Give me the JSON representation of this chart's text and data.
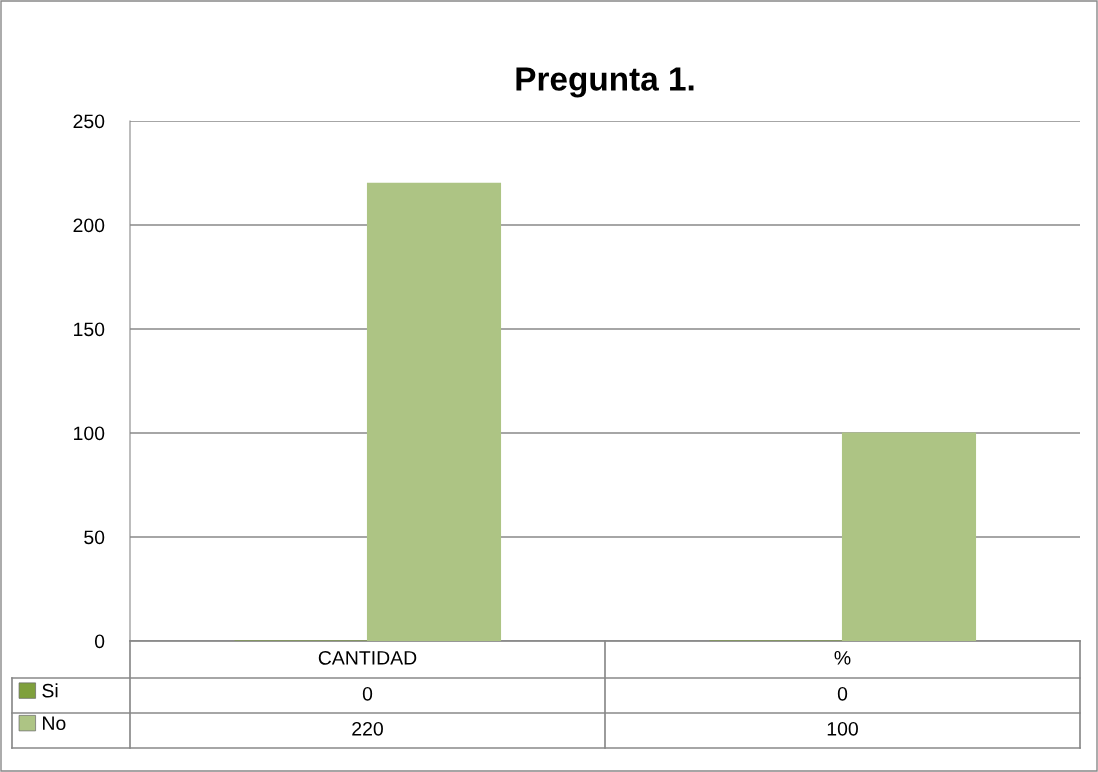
{
  "chart_data": {
    "type": "bar",
    "title": "Pregunta 1.",
    "categories": [
      "CANTIDAD",
      "%"
    ],
    "series": [
      {
        "name": "Si",
        "color": "#7fa03c",
        "values": [
          0,
          0
        ]
      },
      {
        "name": "No",
        "color": "#adc484",
        "values": [
          220,
          100
        ]
      }
    ],
    "ylim": [
      0,
      250
    ],
    "yticks": [
      0,
      50,
      100,
      150,
      200,
      250
    ],
    "grid": "y",
    "data_labels": true,
    "legend": "bottom"
  }
}
